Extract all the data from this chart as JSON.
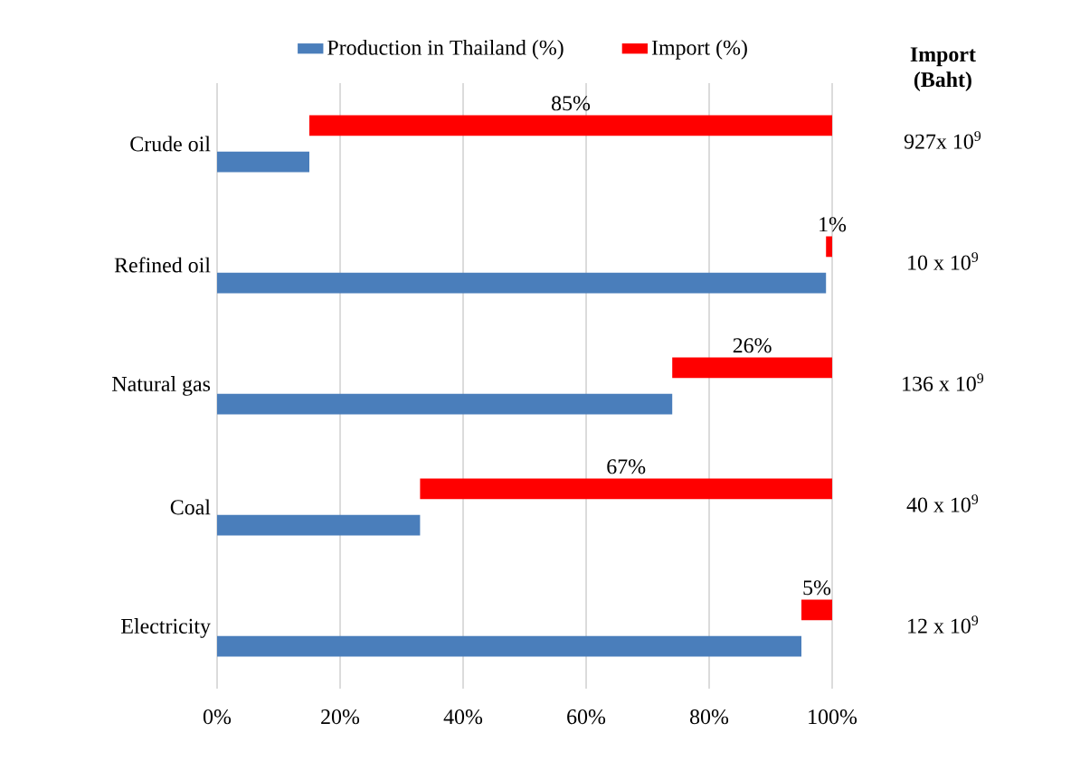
{
  "chart_data": {
    "type": "bar",
    "orientation": "horizontal",
    "categories": [
      "Crude oil",
      "Refined oil",
      "Natural gas",
      "Coal",
      "Electricity"
    ],
    "series": [
      {
        "name": "Production in Thailand (%)",
        "color": "#4a7ebb",
        "values": [
          15,
          99,
          74,
          33,
          95
        ]
      },
      {
        "name": "Import (%)",
        "color": "#ff0000",
        "values": [
          85,
          1,
          26,
          67,
          5
        ],
        "base": [
          15,
          99,
          74,
          33,
          95
        ],
        "value_labels": [
          "85%",
          "1%",
          "26%",
          "67%",
          "5%"
        ]
      }
    ],
    "xlim": [
      0,
      100
    ],
    "xticks": [
      {
        "value": 0,
        "label": "0%"
      },
      {
        "value": 20,
        "label": "20%"
      },
      {
        "value": 40,
        "label": "40%"
      },
      {
        "value": 60,
        "label": "60%"
      },
      {
        "value": 80,
        "label": "80%"
      },
      {
        "value": 100,
        "label": "100%"
      }
    ],
    "grid": "x",
    "legend": "top",
    "annotations": [
      "Import (Baht)",
      "927x 10$^{9}$",
      "10 x 10$^{9}$",
      "136 x 10$^{9}$",
      "40 x 10$^{9}$",
      "12 x 10$^{9}$"
    ]
  }
}
